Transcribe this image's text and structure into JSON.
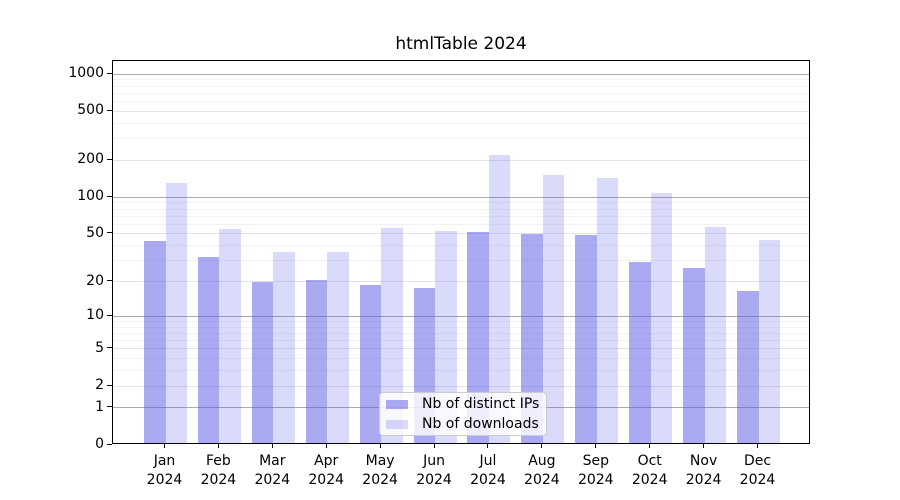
{
  "chart_data": {
    "type": "bar",
    "title": "htmlTable 2024",
    "xlabel": "",
    "ylabel": "",
    "yscale": "log1p",
    "ylim": [
      0,
      1280
    ],
    "yticks": [
      0,
      1,
      2,
      5,
      10,
      20,
      50,
      100,
      200,
      500,
      1000
    ],
    "grid": {
      "major_values": [
        1,
        10,
        100,
        1000
      ],
      "mid_values": [
        2,
        5,
        20,
        50,
        200,
        500
      ],
      "minor_values": [
        3,
        4,
        6,
        7,
        8,
        9,
        30,
        40,
        60,
        70,
        80,
        90,
        300,
        400,
        600,
        700,
        800,
        900
      ],
      "major_color": "#ababab",
      "mid_color": "#e3e3e3",
      "minor_color": "#f2f2f2"
    },
    "categories": [
      {
        "month": "Jan",
        "year": "2024"
      },
      {
        "month": "Feb",
        "year": "2024"
      },
      {
        "month": "Mar",
        "year": "2024"
      },
      {
        "month": "Apr",
        "year": "2024"
      },
      {
        "month": "May",
        "year": "2024"
      },
      {
        "month": "Jun",
        "year": "2024"
      },
      {
        "month": "Jul",
        "year": "2024"
      },
      {
        "month": "Aug",
        "year": "2024"
      },
      {
        "month": "Sep",
        "year": "2024"
      },
      {
        "month": "Oct",
        "year": "2024"
      },
      {
        "month": "Nov",
        "year": "2024"
      },
      {
        "month": "Dec",
        "year": "2024"
      }
    ],
    "series": [
      {
        "name": "Nb of distinct IPs",
        "color": "rgba(85,85,230,0.5)",
        "values": [
          42,
          31,
          19,
          20,
          18,
          17,
          50,
          48,
          47,
          28,
          25,
          16
        ]
      },
      {
        "name": "Nb of downloads",
        "color": "rgba(85,85,230,0.22)",
        "values": [
          125,
          53,
          34,
          34,
          54,
          51,
          213,
          147,
          139,
          105,
          55,
          43
        ]
      }
    ],
    "legend_position": "lower center",
    "background_color": "#ffffff",
    "accent_color": "#5555e6"
  }
}
